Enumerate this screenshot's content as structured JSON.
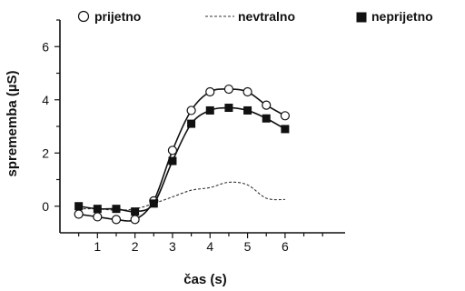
{
  "chart_data": {
    "type": "line",
    "xlabel": "čas (s)",
    "ylabel": "sprememba (µS)",
    "xlim": [
      0,
      7.6
    ],
    "ylim": [
      -1,
      7
    ],
    "xticks": [
      "1",
      "2",
      "3",
      "4",
      "5",
      "6"
    ],
    "yticks": [
      "0",
      "2",
      "4",
      "6"
    ],
    "legend": {
      "position": "top"
    },
    "series": [
      {
        "name": "prijetno",
        "marker": "open-circle",
        "style": "solid",
        "x": [
          0.5,
          1.0,
          1.5,
          2.0,
          2.5,
          3.0,
          3.5,
          4.0,
          4.5,
          5.0,
          5.5,
          6.0
        ],
        "y": [
          -0.3,
          -0.4,
          -0.5,
          -0.5,
          0.2,
          2.1,
          3.6,
          4.3,
          4.4,
          4.3,
          3.8,
          3.4
        ]
      },
      {
        "name": "nevtralno",
        "marker": "none",
        "style": "dashed",
        "x": [
          0.5,
          1.0,
          1.5,
          2.0,
          2.5,
          3.0,
          3.5,
          4.0,
          4.5,
          5.0,
          5.5,
          6.0
        ],
        "y": [
          -0.1,
          -0.1,
          -0.15,
          -0.1,
          0.1,
          0.35,
          0.6,
          0.7,
          0.9,
          0.8,
          0.3,
          0.25
        ]
      },
      {
        "name": "neprijetno",
        "marker": "filled-square",
        "style": "solid",
        "x": [
          0.5,
          1.0,
          1.5,
          2.0,
          2.5,
          3.0,
          3.5,
          4.0,
          4.5,
          5.0,
          5.5,
          6.0
        ],
        "y": [
          0.0,
          -0.1,
          -0.1,
          -0.2,
          0.1,
          1.7,
          3.1,
          3.6,
          3.7,
          3.6,
          3.3,
          2.9
        ]
      }
    ]
  }
}
